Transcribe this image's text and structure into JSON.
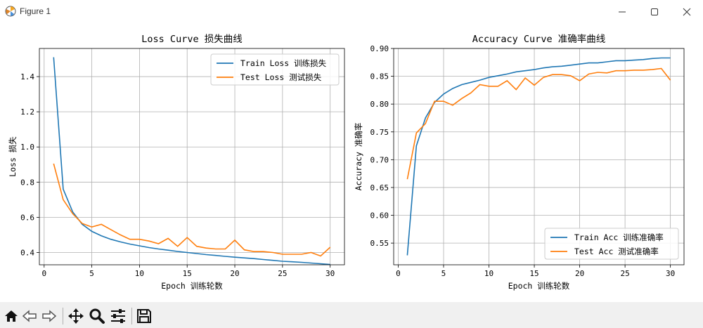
{
  "window": {
    "title": "Figure 1"
  },
  "icons": {
    "app": "matplotlib-figure-icon",
    "minimize": "minimize-icon",
    "maximize": "maximize-icon",
    "close": "close-icon",
    "tools": [
      "home-icon",
      "back-arrow-icon",
      "forward-arrow-icon",
      "pan-icon",
      "zoom-icon",
      "configure-subplots-icon",
      "save-icon"
    ]
  },
  "colors": {
    "train": "#1f77b4",
    "test": "#ff7f0e",
    "grid": "#b0b0b0"
  },
  "chart_data": [
    {
      "type": "line",
      "title": "Loss Curve 损失曲线",
      "xlabel": "Epoch 训练轮数",
      "ylabel": "Loss 损失",
      "xlim": [
        -0.5,
        31.5
      ],
      "ylim": [
        0.33,
        1.56
      ],
      "xticks": [
        0,
        5,
        10,
        15,
        20,
        25,
        30
      ],
      "yticks": [
        0.4,
        0.6,
        0.8,
        1.0,
        1.2,
        1.4
      ],
      "ytick_labels": [
        "0.4",
        "0.6",
        "0.8",
        "1.0",
        "1.2",
        "1.4"
      ],
      "grid": true,
      "legend": "upper right",
      "x": [
        1,
        2,
        3,
        4,
        5,
        6,
        7,
        8,
        9,
        10,
        11,
        12,
        13,
        14,
        15,
        16,
        17,
        18,
        19,
        20,
        21,
        22,
        23,
        24,
        25,
        26,
        27,
        28,
        29,
        30
      ],
      "series": [
        {
          "name": "Train Loss 训练损失",
          "values": [
            1.51,
            0.76,
            0.63,
            0.56,
            0.52,
            0.495,
            0.475,
            0.46,
            0.448,
            0.438,
            0.428,
            0.42,
            0.413,
            0.406,
            0.4,
            0.394,
            0.388,
            0.383,
            0.378,
            0.373,
            0.369,
            0.365,
            0.36,
            0.355,
            0.35,
            0.347,
            0.344,
            0.34,
            0.336,
            0.332
          ]
        },
        {
          "name": "Test Loss 测试损失",
          "values": [
            0.905,
            0.7,
            0.62,
            0.565,
            0.545,
            0.56,
            0.53,
            0.5,
            0.475,
            0.475,
            0.465,
            0.45,
            0.48,
            0.435,
            0.485,
            0.435,
            0.425,
            0.42,
            0.42,
            0.47,
            0.415,
            0.405,
            0.405,
            0.4,
            0.39,
            0.39,
            0.39,
            0.4,
            0.38,
            0.43
          ]
        }
      ]
    },
    {
      "type": "line",
      "title": "Accuracy Curve 准确率曲线",
      "xlabel": "Epoch 训练轮数",
      "ylabel": "Accuracy 准确率",
      "xlim": [
        -0.5,
        31.5
      ],
      "ylim": [
        0.511,
        0.9
      ],
      "xticks": [
        0,
        5,
        10,
        15,
        20,
        25,
        30
      ],
      "yticks": [
        0.55,
        0.6,
        0.65,
        0.7,
        0.75,
        0.8,
        0.85,
        0.9
      ],
      "ytick_labels": [
        "0.55",
        "0.60",
        "0.65",
        "0.70",
        "0.75",
        "0.80",
        "0.85",
        "0.90"
      ],
      "grid": true,
      "legend": "lower right",
      "x": [
        1,
        2,
        3,
        4,
        5,
        6,
        7,
        8,
        9,
        10,
        11,
        12,
        13,
        14,
        15,
        16,
        17,
        18,
        19,
        20,
        21,
        22,
        23,
        24,
        25,
        26,
        27,
        28,
        29,
        30
      ],
      "series": [
        {
          "name": "Train Acc 训练准确率",
          "values": [
            0.528,
            0.725,
            0.775,
            0.803,
            0.818,
            0.828,
            0.835,
            0.839,
            0.843,
            0.848,
            0.851,
            0.854,
            0.858,
            0.86,
            0.862,
            0.865,
            0.867,
            0.868,
            0.87,
            0.872,
            0.874,
            0.874,
            0.876,
            0.878,
            0.878,
            0.879,
            0.88,
            0.882,
            0.883,
            0.883
          ]
        },
        {
          "name": "Test Acc 测试准确率",
          "values": [
            0.665,
            0.748,
            0.765,
            0.805,
            0.805,
            0.798,
            0.81,
            0.82,
            0.835,
            0.832,
            0.832,
            0.842,
            0.826,
            0.847,
            0.834,
            0.848,
            0.853,
            0.853,
            0.851,
            0.842,
            0.854,
            0.857,
            0.856,
            0.86,
            0.86,
            0.861,
            0.861,
            0.862,
            0.864,
            0.843
          ]
        }
      ]
    }
  ]
}
